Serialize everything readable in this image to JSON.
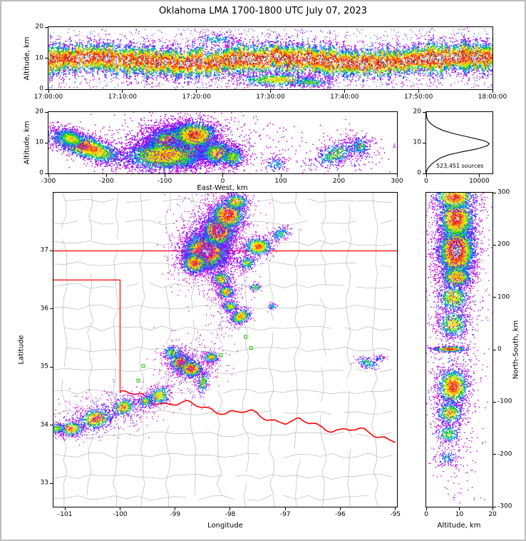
{
  "title": "Oklahoma LMA 1700-1800 UTC July 07, 2023",
  "labels": {
    "altitude_km": "Altitude, km",
    "east_west_km": "East-West, km",
    "longitude": "Longitude",
    "latitude": "Latitude",
    "north_south_km": "North-South, km",
    "sources": "523,451 sources"
  },
  "colors": {
    "palette": [
      "#cf00e8",
      "#2b2bff",
      "#00a2ff",
      "#00c832",
      "#b4e600",
      "#ffe100",
      "#ff8c00",
      "#ff1e00"
    ],
    "core": [
      "#ffffff",
      "#c8c8c8",
      "#2e2e2e"
    ],
    "county": "#b8b8b8",
    "state": "#ff0000",
    "river": "#ff0000",
    "station": "#44cc22",
    "histogram_line": "#000000"
  },
  "chart_data": [
    {
      "id": "time_height",
      "type": "scatter",
      "ylabel": "Altitude, km",
      "xlim": [
        0,
        3600
      ],
      "ylim": [
        0,
        20
      ],
      "seed": 7,
      "xticks": [
        {
          "v": 0,
          "label": "17:00:00"
        },
        {
          "v": 600,
          "label": "17:10:00"
        },
        {
          "v": 1200,
          "label": "17:20:00"
        },
        {
          "v": 1800,
          "label": "17:30:00"
        },
        {
          "v": 2400,
          "label": "17:40:00"
        },
        {
          "v": 3000,
          "label": "17:50:00"
        },
        {
          "v": 3600,
          "label": "18:00:00"
        }
      ],
      "yticks": [
        {
          "v": 0,
          "label": "0"
        },
        {
          "v": 10,
          "label": "10"
        },
        {
          "v": 20,
          "label": "20"
        }
      ],
      "band": {
        "alt_mean": 9.5,
        "sigma_min": 1.7,
        "sigma_max": 3.0,
        "count_min": 30,
        "count_max": 110,
        "col_step": 2
      },
      "clusters": [
        {
          "x": 1850,
          "y": 3.2,
          "sx": 170,
          "sy": 1.2,
          "n": 650,
          "i": 0.6
        },
        {
          "x": 2120,
          "y": 2.4,
          "sx": 90,
          "sy": 0.9,
          "n": 240,
          "i": 0.45
        },
        {
          "x": 1350,
          "y": 16.2,
          "sx": 100,
          "sy": 1.1,
          "n": 160,
          "i": 0.3
        }
      ]
    },
    {
      "id": "east_west",
      "type": "scatter",
      "xlabel": "East-West, km",
      "ylabel": "Altitude, km",
      "xlim": [
        -300,
        300
      ],
      "ylim": [
        0,
        20
      ],
      "seed": 13,
      "xticks": [
        {
          "v": -300,
          "label": "-300"
        },
        {
          "v": -200,
          "label": "-200"
        },
        {
          "v": -100,
          "label": "-100"
        },
        {
          "v": 0,
          "label": "0"
        },
        {
          "v": 100,
          "label": "100"
        },
        {
          "v": 200,
          "label": "200"
        },
        {
          "v": 300,
          "label": "300"
        }
      ],
      "yticks": [
        {
          "v": 0,
          "label": "0"
        },
        {
          "v": 10,
          "label": "10"
        },
        {
          "v": 20,
          "label": "20"
        }
      ],
      "clusters": [
        {
          "x": -237,
          "y": 8.8,
          "sx": 34,
          "sy": 2.0,
          "rot": -0.06,
          "n": 2200,
          "i": 0.8
        },
        {
          "x": -262,
          "y": 11.5,
          "sx": 14,
          "sy": 1.6,
          "rot": -0.05,
          "n": 600,
          "i": 0.6
        },
        {
          "x": -80,
          "y": 9.2,
          "sx": 26,
          "sy": 3.0,
          "n": 8000,
          "i": 1.0
        },
        {
          "x": -100,
          "y": 6.0,
          "sx": 38,
          "sy": 2.6,
          "n": 2500,
          "i": 0.7
        },
        {
          "x": -50,
          "y": 12.5,
          "sx": 22,
          "sy": 2.4,
          "n": 1800,
          "i": 0.8
        },
        {
          "x": -10,
          "y": 6.8,
          "sx": 16,
          "sy": 2.2,
          "n": 1000,
          "i": 0.6
        },
        {
          "x": 15,
          "y": 5.5,
          "sx": 12,
          "sy": 1.8,
          "n": 500,
          "i": 0.5
        },
        {
          "x": -70,
          "y": 9,
          "sx": 90,
          "sy": 5.5,
          "n": 900,
          "i": 0.14
        },
        {
          "x": 90,
          "y": 3,
          "sx": 10,
          "sy": 1.5,
          "n": 120,
          "i": 0.3
        },
        {
          "x": 195,
          "y": 6.5,
          "sx": 22,
          "sy": 2.0,
          "rot": 0.06,
          "n": 420,
          "i": 0.45
        },
        {
          "x": 235,
          "y": 9.0,
          "sx": 10,
          "sy": 1.8,
          "n": 220,
          "i": 0.4
        },
        {
          "x": 215,
          "y": 7.5,
          "sx": 35,
          "sy": 3.5,
          "n": 200,
          "i": 0.12
        }
      ]
    },
    {
      "id": "histogram",
      "type": "line",
      "annotation": "523,451 sources",
      "xlim": [
        0,
        12500
      ],
      "ylim": [
        0,
        20
      ],
      "xticks": [
        {
          "v": 0,
          "label": "0"
        },
        {
          "v": 10000,
          "label": "10000"
        }
      ],
      "yticks": [
        {
          "v": 0,
          "label": "0"
        },
        {
          "v": 10,
          "label": "10"
        },
        {
          "v": 20,
          "label": "20"
        }
      ],
      "profile": [
        [
          0,
          0
        ],
        [
          0.5,
          30
        ],
        [
          1,
          120
        ],
        [
          1.5,
          260
        ],
        [
          2,
          480
        ],
        [
          3,
          1000
        ],
        [
          4,
          1750
        ],
        [
          5,
          2600
        ],
        [
          6,
          4100
        ],
        [
          7,
          6600
        ],
        [
          8,
          9600
        ],
        [
          9,
          11500
        ],
        [
          9.7,
          11900
        ],
        [
          10.5,
          11200
        ],
        [
          11,
          10100
        ],
        [
          12,
          7600
        ],
        [
          13,
          5100
        ],
        [
          14,
          3200
        ],
        [
          15,
          1900
        ],
        [
          16,
          1000
        ],
        [
          17,
          430
        ],
        [
          18,
          150
        ],
        [
          19,
          40
        ],
        [
          20,
          5
        ]
      ]
    },
    {
      "id": "plan_view",
      "type": "scatter",
      "xlabel": "Longitude",
      "ylabel": "Latitude",
      "xlim": [
        -101.21,
        -94.97
      ],
      "ylim": [
        32.6,
        38.0
      ],
      "seed": 29,
      "xticks": [
        {
          "v": -101,
          "label": "-101"
        },
        {
          "v": -100,
          "label": "-100"
        },
        {
          "v": -99,
          "label": "-99"
        },
        {
          "v": -98,
          "label": "-98"
        },
        {
          "v": -97,
          "label": "-97"
        },
        {
          "v": -96,
          "label": "-96"
        },
        {
          "v": -95,
          "label": "-95"
        }
      ],
      "yticks": [
        {
          "v": 33,
          "label": "33"
        },
        {
          "v": 34,
          "label": "34"
        },
        {
          "v": 35,
          "label": "35"
        },
        {
          "v": 36,
          "label": "36"
        },
        {
          "v": 37,
          "label": "37"
        }
      ],
      "map": {
        "counties": {
          "dlon": 0.47,
          "dlat": 0.365,
          "seed": 21,
          "skip": 0.12,
          "jitter": 0.06
        },
        "state_lines": [
          [
            [
              -101.21,
              37.0
            ],
            [
              -94.97,
              37.0
            ]
          ],
          [
            [
              -101.21,
              36.5
            ],
            [
              -100.0,
              36.5
            ]
          ],
          [
            [
              -100.0,
              36.5
            ],
            [
              -100.0,
              34.56
            ]
          ]
        ],
        "river": {
          "start_lon": -100.0,
          "start_lat": 34.56,
          "slope": 0.158,
          "amp1": 0.05,
          "amp2": 0.03,
          "seed": 99
        },
        "stations": [
          [
            -99.58,
            35.02
          ],
          [
            -99.67,
            34.77
          ],
          [
            -97.62,
            35.33
          ],
          [
            -97.72,
            35.52
          ],
          [
            -98.17,
            35.21
          ]
        ]
      },
      "clusters": [
        {
          "x": -98.45,
          "y": 37.0,
          "sx": 0.2,
          "sy": 0.16,
          "n": 5200,
          "i": 1.0
        },
        {
          "x": -98.22,
          "y": 37.35,
          "sx": 0.15,
          "sy": 0.14,
          "n": 2600,
          "i": 0.95
        },
        {
          "x": -98.05,
          "y": 37.62,
          "sx": 0.16,
          "sy": 0.13,
          "n": 1600,
          "i": 0.85
        },
        {
          "x": -97.9,
          "y": 37.85,
          "sx": 0.12,
          "sy": 0.08,
          "n": 500,
          "i": 0.6
        },
        {
          "x": -98.65,
          "y": 36.8,
          "sx": 0.12,
          "sy": 0.1,
          "n": 900,
          "i": 0.8
        },
        {
          "x": -98.3,
          "y": 37.15,
          "sx": 0.35,
          "sy": 0.4,
          "n": 1300,
          "i": 0.14
        },
        {
          "x": -97.5,
          "y": 37.08,
          "sx": 0.13,
          "sy": 0.08,
          "n": 700,
          "i": 0.78
        },
        {
          "x": -97.1,
          "y": 37.3,
          "sx": 0.1,
          "sy": 0.06,
          "rot": 0.3,
          "n": 200,
          "i": 0.38
        },
        {
          "x": -97.7,
          "y": 36.8,
          "sx": 0.08,
          "sy": 0.06,
          "n": 220,
          "i": 0.5
        },
        {
          "x": -98.17,
          "y": 36.52,
          "sx": 0.09,
          "sy": 0.07,
          "n": 330,
          "i": 0.6
        },
        {
          "x": -98.08,
          "y": 36.3,
          "sx": 0.08,
          "sy": 0.06,
          "n": 380,
          "i": 0.65
        },
        {
          "x": -98.0,
          "y": 36.05,
          "sx": 0.07,
          "sy": 0.05,
          "n": 300,
          "i": 0.6
        },
        {
          "x": -97.82,
          "y": 35.88,
          "sx": 0.1,
          "sy": 0.06,
          "rot": 0.4,
          "n": 480,
          "i": 0.72
        },
        {
          "x": -98.1,
          "y": 36.6,
          "sx": 0.18,
          "sy": 0.5,
          "n": 450,
          "i": 0.12
        },
        {
          "x": -97.55,
          "y": 36.38,
          "sx": 0.05,
          "sy": 0.04,
          "n": 90,
          "i": 0.45
        },
        {
          "x": -97.25,
          "y": 36.05,
          "sx": 0.04,
          "sy": 0.03,
          "n": 55,
          "i": 0.35
        },
        {
          "x": -98.9,
          "y": 35.08,
          "sx": 0.1,
          "sy": 0.08,
          "n": 750,
          "i": 0.9
        },
        {
          "x": -98.72,
          "y": 34.98,
          "sx": 0.11,
          "sy": 0.08,
          "n": 700,
          "i": 0.85
        },
        {
          "x": -99.05,
          "y": 35.25,
          "sx": 0.1,
          "sy": 0.07,
          "n": 260,
          "i": 0.45
        },
        {
          "x": -98.35,
          "y": 35.18,
          "sx": 0.07,
          "sy": 0.05,
          "n": 260,
          "i": 0.6
        },
        {
          "x": -98.5,
          "y": 34.75,
          "sx": 0.05,
          "sy": 0.1,
          "rot": -0.2,
          "n": 220,
          "i": 0.5
        },
        {
          "x": -98.75,
          "y": 35.0,
          "sx": 0.3,
          "sy": 0.24,
          "n": 420,
          "i": 0.13
        },
        {
          "x": -99.3,
          "y": 34.52,
          "sx": 0.11,
          "sy": 0.08,
          "rot": 0.35,
          "n": 380,
          "i": 0.6
        },
        {
          "x": -99.55,
          "y": 34.42,
          "sx": 0.08,
          "sy": 0.06,
          "n": 220,
          "i": 0.5
        },
        {
          "x": -99.95,
          "y": 34.32,
          "sx": 0.12,
          "sy": 0.08,
          "rot": 0.25,
          "n": 420,
          "i": 0.68
        },
        {
          "x": -100.45,
          "y": 34.12,
          "sx": 0.16,
          "sy": 0.09,
          "rot": 0.18,
          "n": 620,
          "i": 0.78
        },
        {
          "x": -100.9,
          "y": 33.95,
          "sx": 0.12,
          "sy": 0.07,
          "n": 420,
          "i": 0.7
        },
        {
          "x": -101.15,
          "y": 33.95,
          "sx": 0.08,
          "sy": 0.05,
          "n": 200,
          "i": 0.5
        },
        {
          "x": -100.3,
          "y": 34.2,
          "sx": 0.5,
          "sy": 0.18,
          "rot": 0.18,
          "n": 450,
          "i": 0.12
        },
        {
          "x": -95.52,
          "y": 35.08,
          "sx": 0.1,
          "sy": 0.05,
          "rot": -0.25,
          "n": 160,
          "i": 0.38
        },
        {
          "x": -95.3,
          "y": 35.16,
          "sx": 0.05,
          "sy": 0.03,
          "n": 60,
          "i": 0.3
        }
      ]
    },
    {
      "id": "north_south",
      "type": "scatter",
      "xlabel": "Altitude, km",
      "ylabel": "North-South, km",
      "xlim": [
        0,
        20
      ],
      "ylim": [
        -300,
        300
      ],
      "seed": 43,
      "xticks": [
        {
          "v": 0,
          "label": "0"
        },
        {
          "v": 10,
          "label": "10"
        },
        {
          "v": 20,
          "label": "20"
        }
      ],
      "yticks": [
        {
          "v": 300,
          "label": "300"
        },
        {
          "v": 200,
          "label": "200"
        },
        {
          "v": 100,
          "label": "100"
        },
        {
          "v": 0,
          "label": "0"
        },
        {
          "v": -100,
          "label": "-100"
        },
        {
          "v": -200,
          "label": "-200"
        },
        {
          "v": -300,
          "label": "-300"
        }
      ],
      "clusters": [
        {
          "x": 9,
          "y": 190,
          "sx": 2.8,
          "sy": 26,
          "n": 4500,
          "i": 1.0
        },
        {
          "x": 9,
          "y": 250,
          "sx": 2.8,
          "sy": 22,
          "n": 1800,
          "i": 0.85
        },
        {
          "x": 8.5,
          "y": 292,
          "sx": 3.2,
          "sy": 14,
          "n": 900,
          "i": 0.8
        },
        {
          "x": 9,
          "y": 140,
          "sx": 2.6,
          "sy": 12,
          "n": 700,
          "i": 0.7
        },
        {
          "x": 8,
          "y": 100,
          "sx": 2.4,
          "sy": 14,
          "n": 650,
          "i": 0.62
        },
        {
          "x": 8,
          "y": 50,
          "sx": 2.4,
          "sy": 14,
          "n": 550,
          "i": 0.6
        },
        {
          "x": 7,
          "y": 2,
          "sx": 2.6,
          "sy": 3,
          "n": 450,
          "i": 0.85
        },
        {
          "x": 8,
          "y": -70,
          "sx": 2.4,
          "sy": 18,
          "n": 1300,
          "i": 0.85
        },
        {
          "x": 7,
          "y": -120,
          "sx": 2.2,
          "sy": 12,
          "n": 500,
          "i": 0.6
        },
        {
          "x": 6.5,
          "y": -160,
          "sx": 2,
          "sy": 10,
          "n": 260,
          "i": 0.45
        },
        {
          "x": 6,
          "y": -205,
          "sx": 1.8,
          "sy": 9,
          "n": 120,
          "i": 0.3
        },
        {
          "x": 8,
          "y": 60,
          "sx": 4.5,
          "sy": 200,
          "n": 1100,
          "i": 0.12
        }
      ]
    }
  ]
}
